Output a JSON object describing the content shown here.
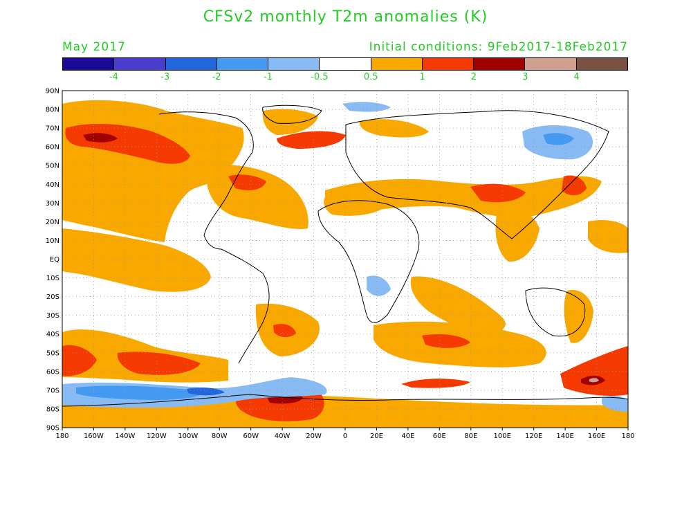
{
  "title": "CFSv2 monthly T2m anomalies (K)",
  "valid_month": "May 2017",
  "initial_conditions": "Initial conditions: 9Feb2017-18Feb2017",
  "colorbar": {
    "colors": [
      "#1a0a96",
      "#4a3ccc",
      "#2266dd",
      "#4499f0",
      "#88bbf4",
      "#ffffff",
      "#f9a800",
      "#f43a00",
      "#a00000",
      "#cfa090",
      "#7a5244"
    ],
    "labels": [
      "-4",
      "-3",
      "-2",
      "-1",
      "-0.5",
      "0.5",
      "1",
      "2",
      "3",
      "4"
    ]
  },
  "map": {
    "lat_labels": [
      "90N",
      "80N",
      "70N",
      "60N",
      "50N",
      "40N",
      "30N",
      "20N",
      "10N",
      "EQ",
      "10S",
      "20S",
      "30S",
      "40S",
      "50S",
      "60S",
      "70S",
      "80S",
      "90S"
    ],
    "lon_labels": [
      "180",
      "160W",
      "140W",
      "120W",
      "100W",
      "80W",
      "60W",
      "40W",
      "20W",
      "0",
      "20E",
      "40E",
      "60E",
      "80E",
      "100E",
      "120E",
      "140E",
      "160E",
      "180"
    ]
  }
}
